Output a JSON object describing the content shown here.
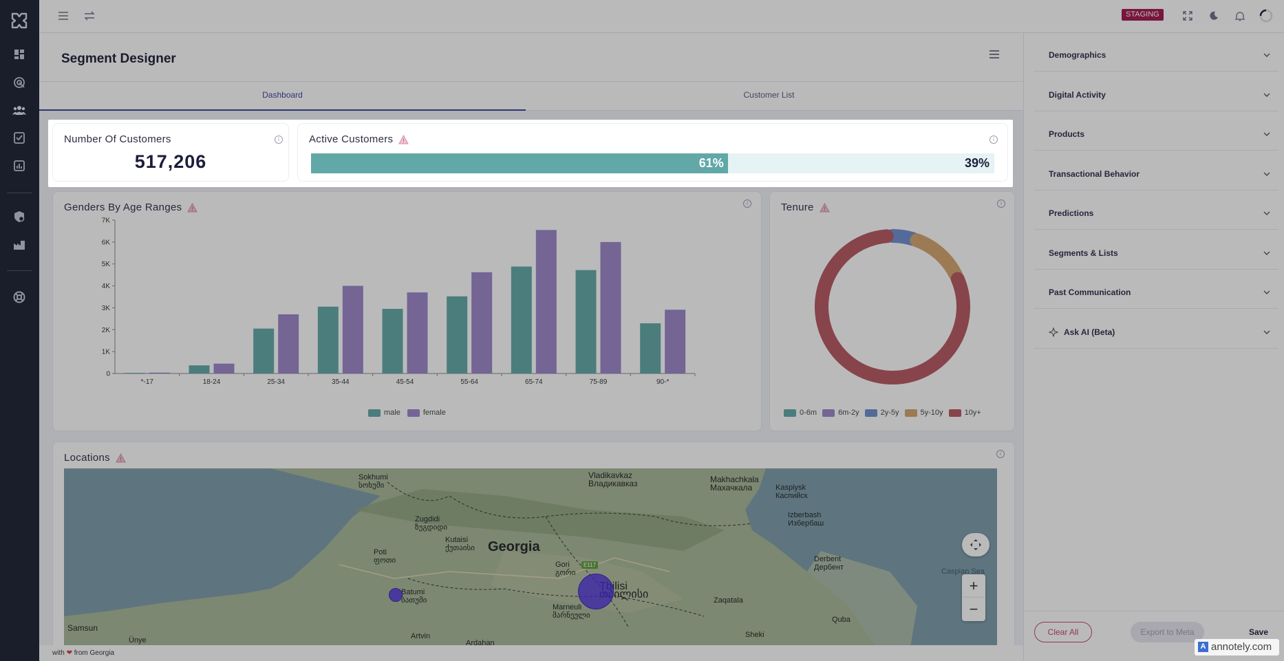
{
  "topbar": {
    "staging_badge": "STAGING"
  },
  "page": {
    "title": "Segment Designer"
  },
  "tabs": [
    {
      "label": "Dashboard",
      "active": true
    },
    {
      "label": "Customer List",
      "active": false
    }
  ],
  "cards": {
    "customers": {
      "title": "Number Of Customers",
      "value": "517,206"
    },
    "active": {
      "title": "Active Customers",
      "active_pct": 61,
      "active_label": "61%",
      "inactive_label": "39%"
    },
    "genders": {
      "title": "Genders By Age Ranges"
    },
    "tenure": {
      "title": "Tenure"
    },
    "locations": {
      "title": "Locations"
    }
  },
  "chart_data": [
    {
      "type": "bar",
      "title": "Genders By Age Ranges",
      "categories": [
        "*-17",
        "18-24",
        "25-34",
        "35-44",
        "45-54",
        "55-64",
        "65-74",
        "75-89",
        "90-*"
      ],
      "series": [
        {
          "name": "male",
          "color": "#61a8a7",
          "values": [
            30,
            370,
            2050,
            3050,
            2950,
            3520,
            4880,
            4720,
            2290
          ]
        },
        {
          "name": "female",
          "color": "#9b86c9",
          "values": [
            40,
            450,
            2700,
            4000,
            3700,
            4620,
            6550,
            6000,
            2910
          ]
        }
      ],
      "yticks": [
        "0",
        "1K",
        "2K",
        "3K",
        "4K",
        "5K",
        "6K",
        "7K"
      ],
      "ylim": [
        0,
        7000
      ],
      "legend": "bottom"
    },
    {
      "type": "pie",
      "title": "Tenure",
      "donut": true,
      "labels": [
        "0-6m",
        "6m-2y",
        "2y-5y",
        "5y-10y",
        "10y+"
      ],
      "colors": [
        "#61a8a7",
        "#9b86c9",
        "#6e8fd0",
        "#d5a46a",
        "#b8575f"
      ],
      "values": [
        0.2,
        0.2,
        5.5,
        13,
        81.1
      ],
      "legend": "bottom"
    }
  ],
  "map": {
    "labels": [
      {
        "text": "Sokhumi",
        "sub": "სოხუმი"
      },
      {
        "text": "Vladikavkaz",
        "sub": "Владикавказ"
      },
      {
        "text": "Makhachkala",
        "sub": "Махачкала"
      },
      {
        "text": "Kaspiysk",
        "sub": "Каспийск"
      },
      {
        "text": "Izberbash",
        "sub": "Избербаш"
      },
      {
        "text": "Zugdidi",
        "sub": "ზუგდიდი"
      },
      {
        "text": "Kutaisi",
        "sub": "ქუთაისი"
      },
      {
        "text": "Poti",
        "sub": "ფოთი"
      },
      {
        "text": "Georgia",
        "sub": ""
      },
      {
        "text": "Gori",
        "sub": "გორი"
      },
      {
        "text": "Derbent",
        "sub": "Дербент"
      },
      {
        "text": "Caspian Sea",
        "sub": ""
      },
      {
        "text": "Batumi",
        "sub": "ბათუმი"
      },
      {
        "text": "Tbilisi",
        "sub": "თბილისი"
      },
      {
        "text": "Zaqatala",
        "sub": ""
      },
      {
        "text": "Marneuli",
        "sub": "მარნეული"
      },
      {
        "text": "Quba",
        "sub": ""
      },
      {
        "text": "Samsun",
        "sub": ""
      },
      {
        "text": "Ünye",
        "sub": ""
      },
      {
        "text": "Artvin",
        "sub": ""
      },
      {
        "text": "Ardahan",
        "sub": ""
      },
      {
        "text": "Sheki",
        "sub": ""
      }
    ],
    "road_badge": "E117",
    "zoom_in": "+",
    "zoom_out": "−"
  },
  "right_panel": {
    "sections": [
      {
        "label": "Demographics"
      },
      {
        "label": "Digital Activity"
      },
      {
        "label": "Products"
      },
      {
        "label": "Transactional Behavior"
      },
      {
        "label": "Predictions"
      },
      {
        "label": "Segments & Lists"
      },
      {
        "label": "Past Communication"
      },
      {
        "label": "Ask AI (Beta)"
      }
    ],
    "clear_label": "Clear All",
    "export_label": "Export to Meta",
    "save_label": "Save"
  },
  "footer": {
    "text_before": "with",
    "text_after": "from Georgia"
  },
  "watermark": {
    "text": "annotely.com"
  }
}
